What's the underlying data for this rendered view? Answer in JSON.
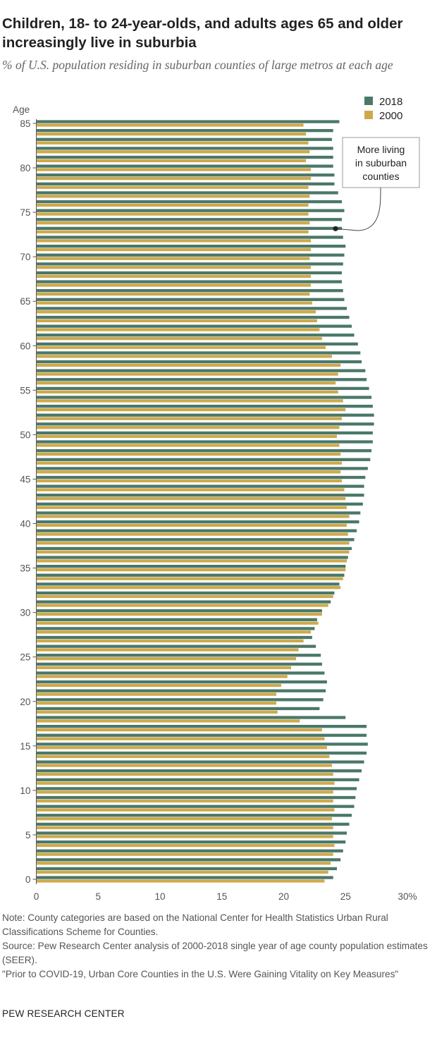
{
  "header": {
    "title": "Children, 18- to 24-year-olds, and adults ages 65 and older increasingly live in suburbia",
    "subtitle": "% of U.S. population residing in suburban counties of large metros at each age"
  },
  "notes": {
    "note": "Note: County categories are based on the National Center for Health Statistics Urban Rural Classifications Scheme for Counties.",
    "source": "Source: Pew Research Center analysis of 2000-2018 single year of age county population estimates (SEER).",
    "citation": "\"Prior to COVID-19, Urban Core Counties in the U.S. Were Gaining Vitality on Key Measures\""
  },
  "brand": "PEW RESEARCH CENTER",
  "colors": {
    "series_2018": "#4a7869",
    "series_2000": "#cea94c",
    "axis": "#555555"
  },
  "chart_data": {
    "type": "bar",
    "orientation": "horizontal",
    "ylabel": "Age",
    "y_tick_labels": [
      "0",
      "5",
      "10",
      "15",
      "20",
      "25",
      "30",
      "35",
      "40",
      "45",
      "50",
      "55",
      "60",
      "65",
      "70",
      "75",
      "80",
      "85"
    ],
    "x_tick_labels": [
      "0",
      "5",
      "10",
      "15",
      "20",
      "25",
      "30%"
    ],
    "xlim": [
      0,
      30
    ],
    "grid": false,
    "legend": {
      "position": "top-right",
      "entries": [
        "2018",
        "2000"
      ]
    },
    "annotation": {
      "text_lines": [
        "More living",
        "in suburban",
        "counties"
      ],
      "points_to_age": 73,
      "series": "2018"
    },
    "categories": [
      0,
      1,
      2,
      3,
      4,
      5,
      6,
      7,
      8,
      9,
      10,
      11,
      12,
      13,
      14,
      15,
      16,
      17,
      18,
      19,
      20,
      21,
      22,
      23,
      24,
      25,
      26,
      27,
      28,
      29,
      30,
      31,
      32,
      33,
      34,
      35,
      36,
      37,
      38,
      39,
      40,
      41,
      42,
      43,
      44,
      45,
      46,
      47,
      48,
      49,
      50,
      51,
      52,
      53,
      54,
      55,
      56,
      57,
      58,
      59,
      60,
      61,
      62,
      63,
      64,
      65,
      66,
      67,
      68,
      69,
      70,
      71,
      72,
      73,
      74,
      75,
      76,
      77,
      78,
      79,
      80,
      81,
      82,
      83,
      84,
      85
    ],
    "series": [
      {
        "name": "2018",
        "values": [
          24.0,
          24.3,
          24.6,
          24.8,
          25.0,
          25.1,
          25.3,
          25.5,
          25.7,
          25.8,
          25.9,
          26.1,
          26.3,
          26.5,
          26.7,
          26.8,
          26.7,
          26.7,
          25.0,
          22.9,
          23.2,
          23.4,
          23.5,
          23.3,
          23.1,
          23.0,
          22.6,
          22.3,
          22.5,
          22.7,
          23.1,
          23.8,
          24.1,
          24.5,
          24.9,
          25.0,
          25.2,
          25.5,
          25.7,
          25.9,
          26.1,
          26.2,
          26.4,
          26.5,
          26.5,
          26.6,
          26.8,
          27.0,
          27.1,
          27.2,
          27.2,
          27.3,
          27.3,
          27.2,
          27.1,
          26.9,
          26.7,
          26.6,
          26.3,
          26.2,
          26.0,
          25.7,
          25.5,
          25.3,
          25.1,
          24.9,
          24.8,
          24.7,
          24.7,
          24.8,
          24.9,
          25.0,
          24.8,
          24.7,
          24.7,
          24.9,
          24.7,
          24.4,
          24.1,
          24.1,
          24.0,
          24.0,
          24.0,
          23.9,
          24.0,
          24.5
        ]
      },
      {
        "name": "2000",
        "values": [
          23.3,
          23.6,
          23.8,
          24.0,
          24.1,
          24.0,
          24.0,
          23.9,
          24.1,
          24.0,
          24.0,
          24.1,
          24.0,
          23.9,
          23.7,
          23.5,
          23.3,
          23.1,
          21.3,
          19.5,
          19.4,
          19.4,
          19.8,
          20.3,
          20.6,
          21.0,
          21.2,
          21.6,
          22.2,
          22.8,
          23.1,
          23.6,
          24.0,
          24.6,
          24.8,
          25.0,
          25.1,
          25.3,
          25.3,
          25.2,
          25.1,
          25.3,
          25.1,
          25.0,
          24.9,
          24.7,
          24.6,
          24.7,
          24.6,
          24.5,
          24.3,
          24.5,
          24.7,
          25.0,
          24.8,
          24.4,
          24.2,
          24.4,
          24.6,
          23.9,
          23.4,
          23.1,
          22.9,
          22.7,
          22.6,
          22.3,
          22.1,
          22.2,
          22.2,
          22.2,
          22.1,
          22.2,
          22.2,
          22.0,
          22.1,
          22.0,
          22.0,
          22.1,
          22.0,
          22.2,
          22.2,
          21.8,
          22.1,
          22.0,
          21.8,
          21.6
        ]
      }
    ]
  }
}
